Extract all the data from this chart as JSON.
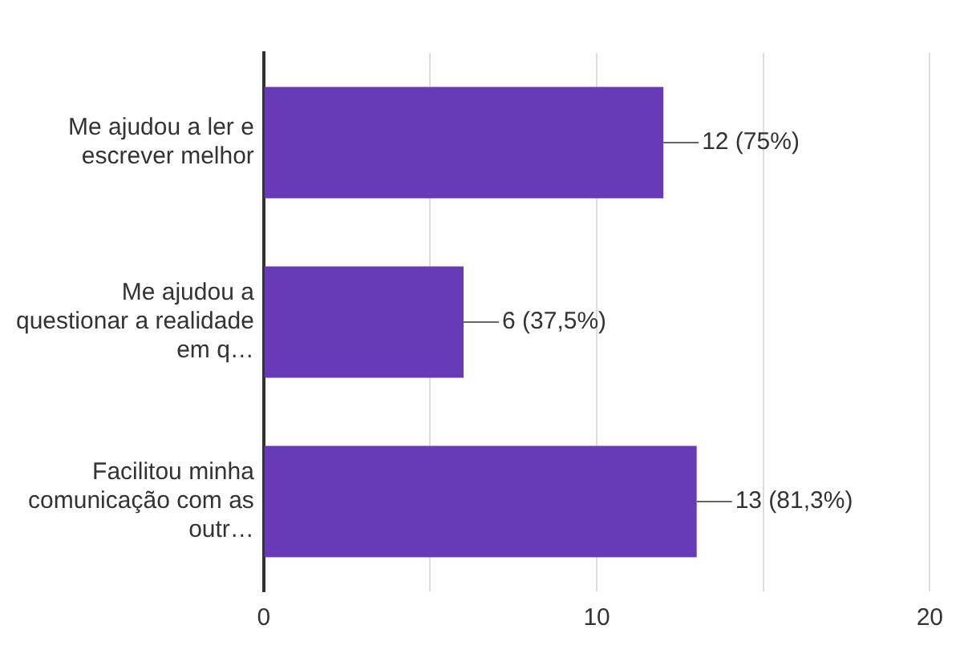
{
  "chart_data": {
    "type": "bar",
    "orientation": "horizontal",
    "categories": [
      "Me ajudou a ler e escrever melhor",
      "Me ajudou a questionar a realidade em q…",
      "Facilitou minha comunicação com as outr…"
    ],
    "values": [
      12,
      6,
      13
    ],
    "color": "#673ab7",
    "value_labels": [
      "12 (75%)",
      "6 (37,5%)",
      "13 (81,3%)"
    ],
    "xlim": [
      0,
      20
    ],
    "xticks": [
      0,
      {
        "value": 5,
        "label": null
      },
      10,
      {
        "value": 15,
        "label": null
      },
      20
    ],
    "grid": "x",
    "legend": false
  }
}
